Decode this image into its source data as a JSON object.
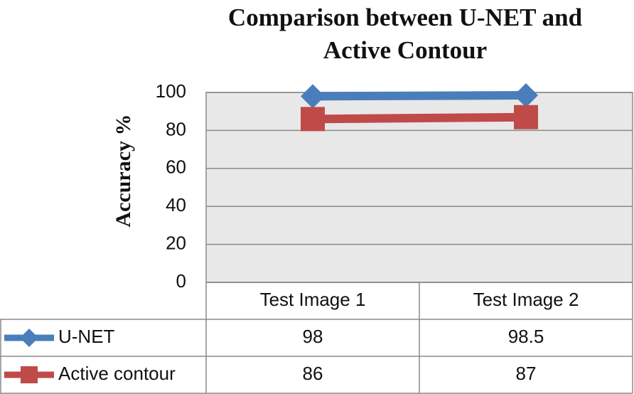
{
  "chart_data": {
    "type": "line",
    "title": "Comparison between U-NET and Active Contour",
    "y_label": "Accuracy %",
    "categories": [
      "Test Image 1",
      "Test Image 2"
    ],
    "series": [
      {
        "name": "U-NET",
        "color": "#4a7ebb",
        "marker": "diamond",
        "values": [
          98,
          98.5
        ]
      },
      {
        "name": "Active contour",
        "color": "#be4b48",
        "marker": "square",
        "values": [
          86,
          87
        ]
      }
    ],
    "ylim": [
      0,
      100
    ],
    "yticks": [
      0,
      20,
      40,
      60,
      80,
      100
    ],
    "grid": true,
    "data_table": true
  }
}
